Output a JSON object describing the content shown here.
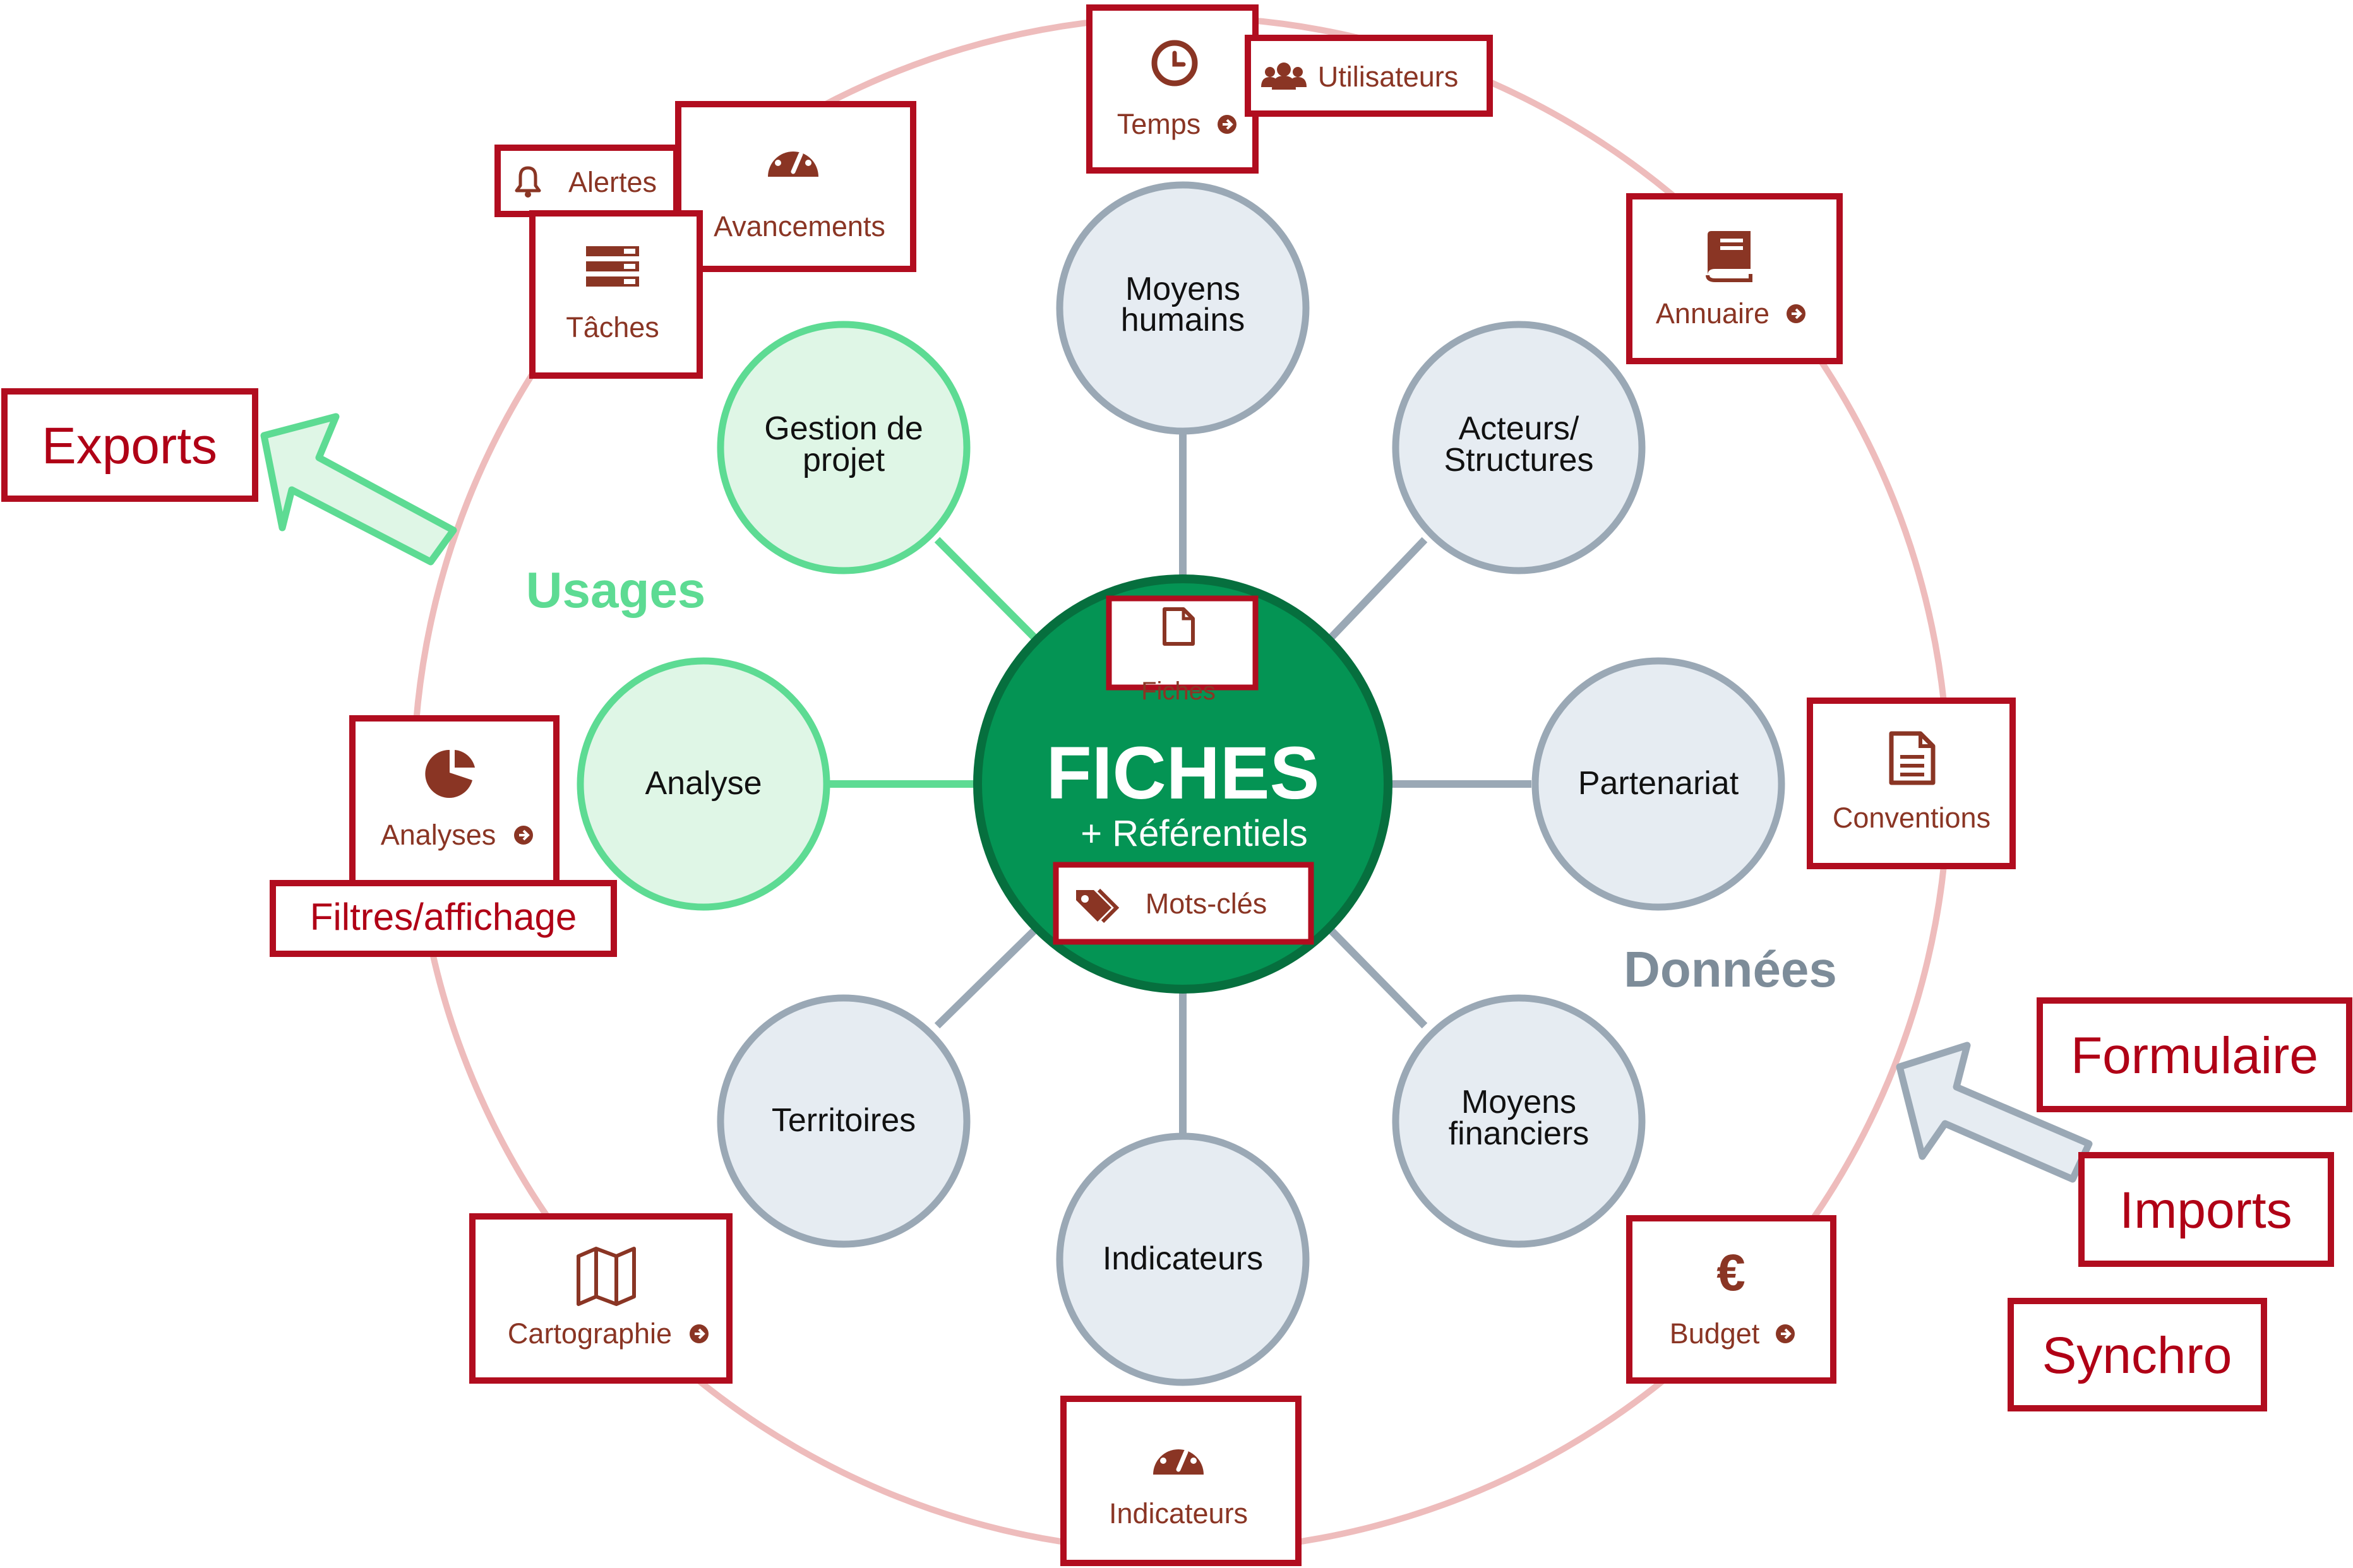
{
  "colors": {
    "ring": "#eebcbc",
    "box_border": "#b10d1f",
    "box_text": "#8a3524",
    "big_text": "#b00016",
    "usage_fill": "#dff6e6",
    "usage_stroke": "#5ddb93",
    "data_fill": "#e6ecf2",
    "data_stroke": "#9aa8b5",
    "center_fill": "#049454",
    "center_stroke": "#066f3e",
    "usages_label": "#5ddb93",
    "donnees_label": "#7d8c99"
  },
  "center": {
    "title": "FICHES",
    "subtitle": "+ Référentiels",
    "fiches_box": "Fiches",
    "motscles_box": "Mots-clés"
  },
  "section_labels": {
    "usages": "Usages",
    "donnees": "Données"
  },
  "usage_nodes": {
    "gestion": [
      "Gestion de",
      "projet"
    ],
    "analyse": [
      "Analyse"
    ]
  },
  "data_nodes": {
    "moyens_humains": [
      "Moyens",
      "humains"
    ],
    "acteurs": [
      "Acteurs/",
      "Structures"
    ],
    "partenariat": [
      "Partenariat"
    ],
    "moyens_financiers": [
      "Moyens",
      "financiers"
    ],
    "indicateurs": [
      "Indicateurs"
    ],
    "territoires": [
      "Territoires"
    ]
  },
  "feature_boxes": {
    "temps": "Temps",
    "utilisateurs": "Utilisateurs",
    "alertes": "Alertes",
    "avancements": "Avancements",
    "taches": "Tâches",
    "annuaire": "Annuaire",
    "conventions": "Conventions",
    "budget": "Budget",
    "indicateurs": "Indicateurs",
    "cartographie": "Cartographie",
    "analyses": "Analyses",
    "filtres": "Filtres/affichage"
  },
  "external_boxes": {
    "exports": "Exports",
    "formulaire": "Formulaire",
    "imports": "Imports",
    "synchro": "Synchro"
  },
  "icons": {
    "temps": "clock-icon",
    "utilisateurs": "users-icon",
    "alertes": "bell-icon",
    "avancements": "gauge-icon",
    "taches": "tasks-icon",
    "annuaire": "book-icon",
    "conventions": "document-icon",
    "budget": "euro-icon",
    "indicateurs": "gauge-icon",
    "cartographie": "map-icon",
    "analyses": "pie-chart-icon",
    "fiches": "file-icon",
    "motscles": "tags-icon"
  }
}
